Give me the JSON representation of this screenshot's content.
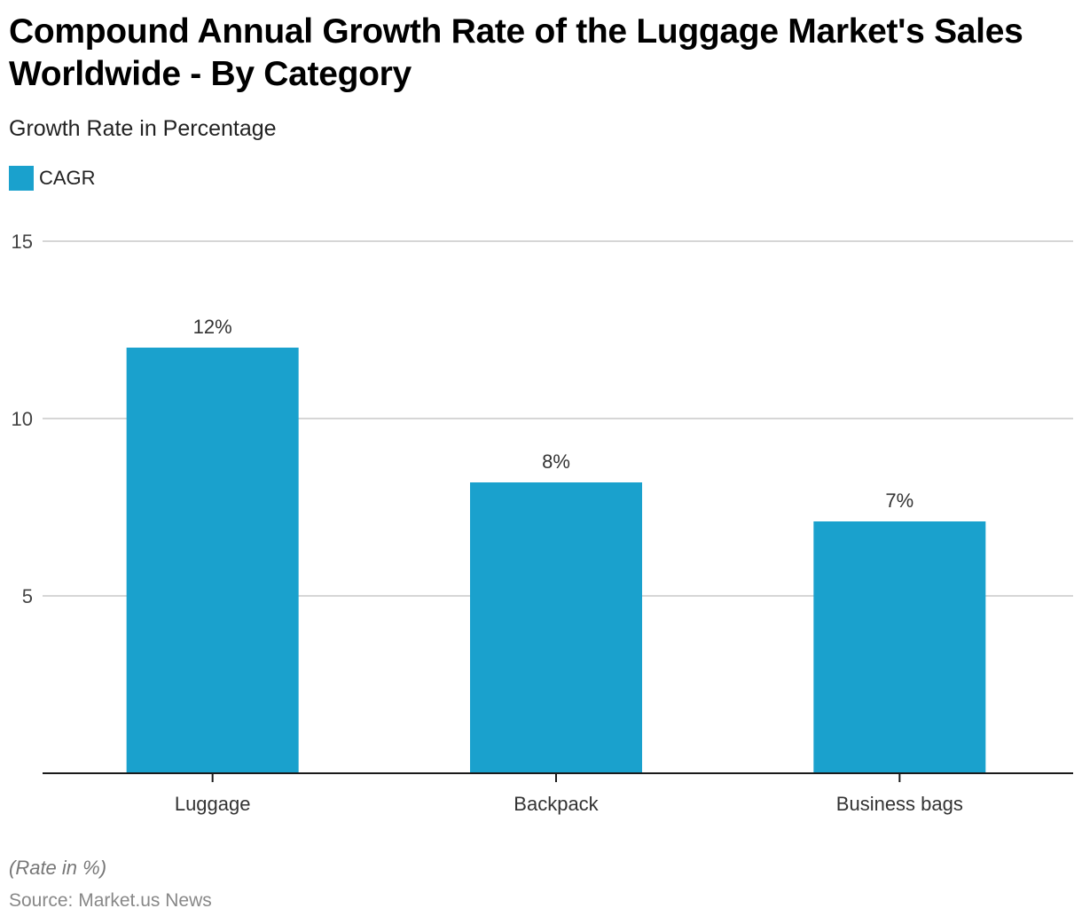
{
  "header": {
    "title": "Compound Annual Growth Rate of the Luggage Market's Sales Worldwide - By Category",
    "subtitle": "Growth Rate in Percentage"
  },
  "legend": {
    "label": "CAGR",
    "color": "#1aa1cd"
  },
  "footer": {
    "note": "(Rate in %)",
    "source": "Source: Market.us News"
  },
  "chart_data": {
    "type": "bar",
    "title": "Compound Annual Growth Rate of the Luggage Market's Sales Worldwide - By Category",
    "subtitle": "Growth Rate in Percentage",
    "xlabel": "",
    "ylabel": "",
    "categories": [
      "Luggage",
      "Backpack",
      "Business bags"
    ],
    "series": [
      {
        "name": "CAGR",
        "color": "#1aa1cd",
        "values": [
          12,
          8.2,
          7.1
        ],
        "data_labels": [
          "12%",
          "8%",
          "7%"
        ]
      }
    ],
    "ylim": [
      0,
      15
    ],
    "yticks": [
      5,
      10,
      15
    ],
    "ytick_labels": [
      "5",
      "10",
      "15"
    ],
    "grid": true,
    "legend_position": "top-left"
  }
}
